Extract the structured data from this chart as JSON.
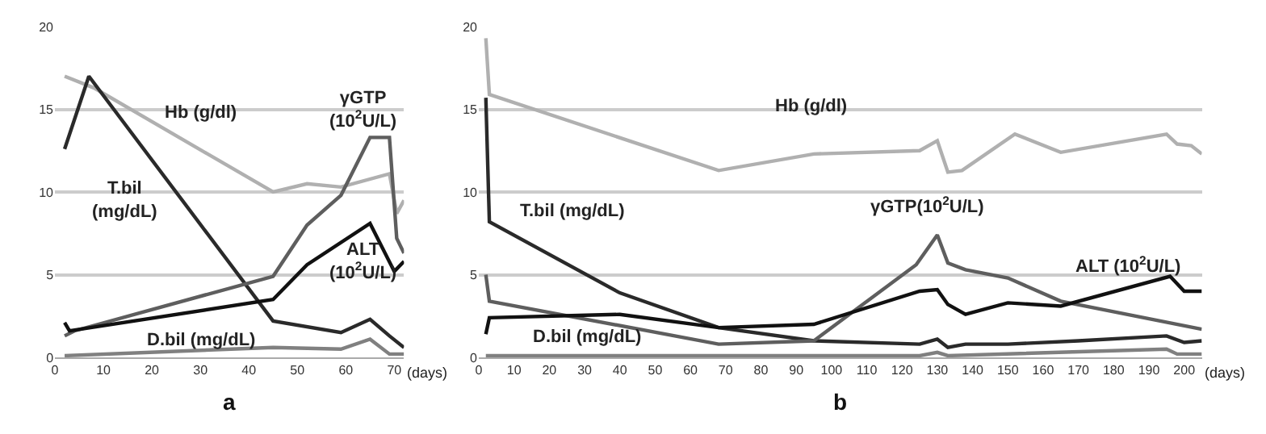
{
  "chart_data": [
    {
      "type": "line",
      "title": "a",
      "xlabel": "(days)",
      "xlim": [
        0,
        72
      ],
      "xticks": [
        0,
        10,
        20,
        30,
        40,
        50,
        60,
        70
      ],
      "ylim": [
        0,
        20
      ],
      "yticks": [
        0,
        5,
        10,
        15,
        20
      ],
      "grid": "y",
      "marker": "none",
      "line_style": "solid",
      "series": [
        {
          "color": "#b0b0b0",
          "x": [
            2,
            8,
            45,
            52,
            59,
            69,
            70.5,
            72
          ],
          "values": [
            17,
            16.3,
            10,
            10.5,
            10.3,
            11.1,
            8.7,
            9.5
          ]
        },
        {
          "color": "#2a2a2a",
          "x": [
            2,
            7,
            45,
            59,
            65,
            69,
            72
          ],
          "values": [
            12.6,
            17,
            2.2,
            1.5,
            2.3,
            1.3,
            0.6
          ]
        },
        {
          "color": "#5e5e5e",
          "x": [
            2,
            4,
            45,
            52,
            59,
            65,
            69,
            70.5,
            72
          ],
          "values": [
            1.3,
            1.6,
            4.9,
            8,
            9.8,
            13.3,
            13.3,
            7.2,
            6.3
          ]
        },
        {
          "color": "#111111",
          "x": [
            2,
            3,
            45,
            52,
            65,
            70,
            72
          ],
          "values": [
            2.1,
            1.6,
            3.5,
            5.6,
            8.1,
            5.2,
            5.8
          ]
        },
        {
          "color": "#808080",
          "x": [
            2,
            45,
            59,
            65,
            69,
            72
          ],
          "values": [
            0.1,
            0.6,
            0.5,
            1.1,
            0.2,
            0.2
          ]
        }
      ],
      "annotations": [
        "Hb (g/dl)",
        "T.bil\n(mg/dL)",
        "γGTP\n(10$^{2}$U/L)",
        "ALT\n(10$^{2}$U/L)",
        "D.bil (mg/dL)"
      ]
    },
    {
      "type": "line",
      "title": "b",
      "xlabel": "(days)",
      "xlim": [
        0,
        205
      ],
      "xticks": [
        0,
        10,
        20,
        30,
        40,
        50,
        60,
        70,
        80,
        90,
        100,
        110,
        120,
        130,
        140,
        150,
        160,
        170,
        180,
        190,
        200
      ],
      "ylim": [
        0,
        20
      ],
      "yticks": [
        0,
        5,
        10,
        15,
        20
      ],
      "grid": "y",
      "marker": "none",
      "line_style": "solid",
      "series": [
        {
          "color": "#b0b0b0",
          "x": [
            2,
            3,
            68,
            95,
            125,
            130,
            133,
            137,
            152,
            165,
            195,
            198,
            202,
            205
          ],
          "values": [
            19.3,
            15.9,
            11.3,
            12.3,
            12.5,
            13.1,
            11.2,
            11.3,
            13.5,
            12.4,
            13.5,
            12.9,
            12.8,
            12.3
          ]
        },
        {
          "color": "#2a2a2a",
          "x": [
            2,
            3,
            40,
            68,
            95,
            125,
            130,
            133,
            138,
            150,
            170,
            195,
            200,
            205
          ],
          "values": [
            15.7,
            8.2,
            3.9,
            1.8,
            1,
            0.8,
            1.1,
            0.6,
            0.8,
            0.8,
            1,
            1.3,
            0.9,
            1
          ]
        },
        {
          "color": "#5e5e5e",
          "x": [
            2,
            3,
            68,
            95,
            124,
            130,
            133,
            138,
            150,
            165,
            205
          ],
          "values": [
            5,
            3.4,
            0.8,
            1,
            5.6,
            7.4,
            5.7,
            5.3,
            4.8,
            3.4,
            1.7
          ]
        },
        {
          "color": "#111111",
          "x": [
            2,
            3,
            40,
            68,
            95,
            125,
            130,
            133,
            138,
            150,
            165,
            196,
            200,
            205
          ],
          "values": [
            1.4,
            2.4,
            2.6,
            1.8,
            2,
            4,
            4.1,
            3.2,
            2.6,
            3.3,
            3.1,
            4.9,
            4,
            4
          ]
        },
        {
          "color": "#808080",
          "x": [
            2,
            125,
            130,
            133,
            195,
            198,
            205
          ],
          "values": [
            0.1,
            0.1,
            0.3,
            0.1,
            0.5,
            0.2,
            0.2
          ]
        }
      ],
      "annotations": [
        "Hb (g/dl)",
        "T.bil (mg/dL)",
        "γGTP(10$^{2}$U/L)",
        "ALT (10$^{2}$U/L)",
        "D.bil (mg/dL)"
      ]
    }
  ]
}
